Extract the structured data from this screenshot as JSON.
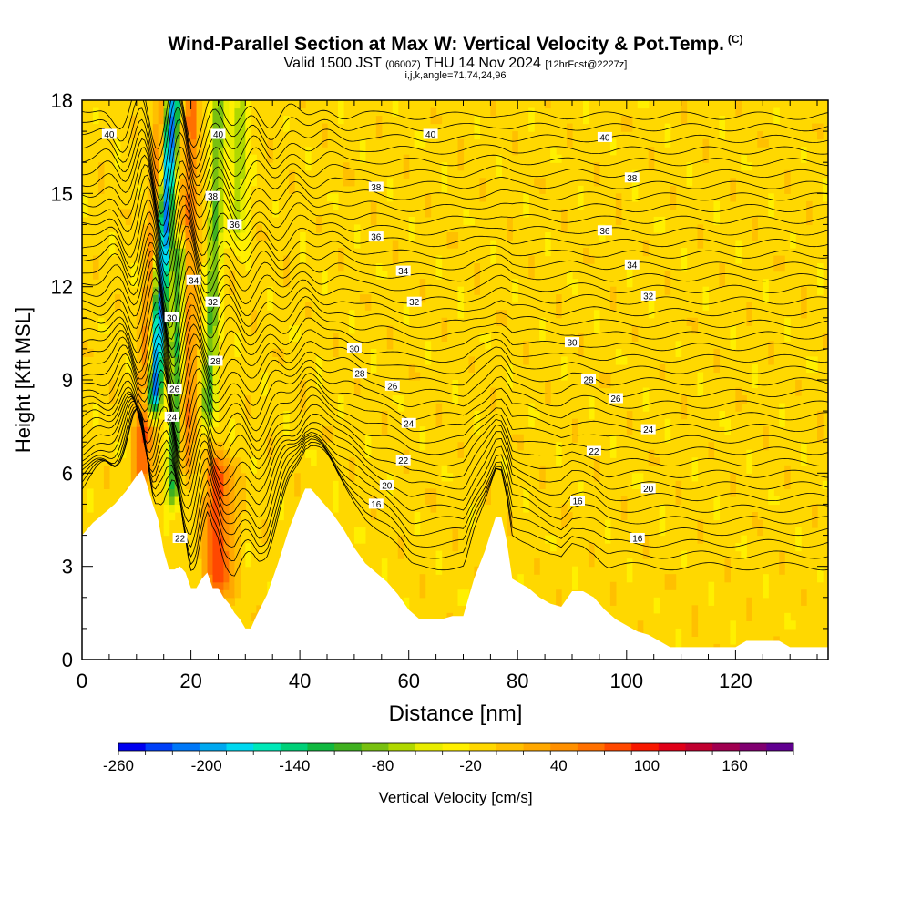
{
  "header": {
    "title": "Wind-Parallel Section at Max W: Vertical Velocity & Pot.Temp.",
    "copyright": "(C)",
    "valid_main": "Valid 1500 JST",
    "valid_utc": "(0600Z)",
    "valid_date": "THU 14 Nov 2024",
    "forecast": "[12hrFcst@2227z]",
    "indices": "i,j,k,angle=71,74,24,96"
  },
  "chart_data": {
    "type": "heatmap",
    "title": "Wind-Parallel Section at Max W: Vertical Velocity & Pot.Temp.",
    "xlabel": "Distance [nm]",
    "ylabel": "Height [Kft MSL]",
    "xlim": [
      0,
      137
    ],
    "ylim": [
      0,
      18
    ],
    "x_ticks": [
      0,
      20,
      40,
      60,
      80,
      100,
      120
    ],
    "x_tick_labels": [
      "0",
      "20",
      "40",
      "60",
      "80",
      "100",
      "120"
    ],
    "y_ticks": [
      0,
      3,
      6,
      9,
      12,
      15,
      18
    ],
    "y_tick_labels": [
      "0",
      "3",
      "6",
      "9",
      "12",
      "15",
      "18"
    ],
    "grid": false,
    "colorbar": {
      "label": "Vertical Velocity [cm/s]",
      "min": -260,
      "max": 180,
      "step": 20,
      "tick_labels": [
        "-260",
        "-200",
        "-140",
        "-80",
        "-20",
        "40",
        "100",
        "160"
      ],
      "tick_values": [
        -260,
        -200,
        -140,
        -80,
        -20,
        40,
        100,
        160
      ],
      "colors": [
        "#0000f0",
        "#0040f8",
        "#0078f8",
        "#00a8f0",
        "#00d8f0",
        "#00e8b8",
        "#00d078",
        "#10b840",
        "#40b020",
        "#78c010",
        "#b0d800",
        "#e8ec00",
        "#fff000",
        "#ffd800",
        "#ffc000",
        "#ffa800",
        "#ff9000",
        "#ff7000",
        "#ff4800",
        "#f81800",
        "#e00018",
        "#c00030",
        "#a00050",
        "#800070",
        "#600090"
      ]
    },
    "background_value": 10,
    "terrain": {
      "x": [
        0,
        2,
        4,
        6,
        8,
        10,
        11,
        12,
        13,
        14,
        15,
        16,
        17,
        18,
        19,
        20,
        21,
        22,
        23,
        24,
        25,
        26,
        27,
        28,
        29,
        30,
        31,
        32,
        34,
        36,
        38,
        40,
        41,
        42,
        43,
        44,
        46,
        48,
        50,
        52,
        54,
        56,
        58,
        60,
        62,
        64,
        66,
        68,
        70,
        71,
        72,
        74,
        76,
        77,
        78,
        79,
        80,
        82,
        84,
        86,
        88,
        90,
        92,
        94,
        96,
        98,
        100,
        102,
        104,
        106,
        108,
        110,
        112,
        114,
        116,
        118,
        120,
        122,
        124,
        126,
        128,
        130,
        132,
        134,
        137
      ],
      "height_kft": [
        4.0,
        4.4,
        4.7,
        5.0,
        5.4,
        5.9,
        6.1,
        5.6,
        5.0,
        4.5,
        3.5,
        2.9,
        2.9,
        3.0,
        2.8,
        2.3,
        2.3,
        2.6,
        2.8,
        2.3,
        2.3,
        2.0,
        1.8,
        1.5,
        1.3,
        1.0,
        1.0,
        1.4,
        2.1,
        3.1,
        4.2,
        5.1,
        5.5,
        5.5,
        5.3,
        5.1,
        4.7,
        4.2,
        3.6,
        3.1,
        2.8,
        2.5,
        2.1,
        1.6,
        1.3,
        1.3,
        1.3,
        1.4,
        1.4,
        2.0,
        2.6,
        3.5,
        4.6,
        4.6,
        3.8,
        2.6,
        2.5,
        2.3,
        2.0,
        1.8,
        1.7,
        2.2,
        2.2,
        2.0,
        1.6,
        1.3,
        1.1,
        0.9,
        0.8,
        0.6,
        0.4,
        0.4,
        0.4,
        0.4,
        0.4,
        0.4,
        0.4,
        0.6,
        0.6,
        0.6,
        0.6,
        0.4,
        0.4,
        0.4,
        0.4
      ]
    },
    "velocity_features": [
      {
        "name": "updraft-left",
        "x": 11.0,
        "z_bottom": 6.0,
        "z_top": 18,
        "lean_nm_per_kft": 0.35,
        "half_width_nm": 1.6,
        "value": 100
      },
      {
        "name": "downdraft-core",
        "x": 13.2,
        "z_bottom": 8.5,
        "z_top": 18,
        "lean_nm_per_kft": 0.35,
        "half_width_nm": 1.4,
        "value": -240
      },
      {
        "name": "downdraft-secondary",
        "x": 16.8,
        "z_bottom": 5.5,
        "z_top": 13.0,
        "lean_nm_per_kft": 0.15,
        "half_width_nm": 1.3,
        "value": -110
      },
      {
        "name": "updraft-mid",
        "x": 19.0,
        "z_bottom": 6.5,
        "z_top": 18,
        "lean_nm_per_kft": 0.1,
        "half_width_nm": 1.5,
        "value": 80
      },
      {
        "name": "updraft-lee",
        "x": 25.0,
        "z_bottom": 2.5,
        "z_top": 6.0,
        "lean_nm_per_kft": 0.0,
        "half_width_nm": 2.5,
        "value": 110
      },
      {
        "name": "downdraft-wave-2",
        "x": 23.2,
        "z_bottom": 8.0,
        "z_top": 18,
        "lean_nm_per_kft": 0.2,
        "half_width_nm": 1.3,
        "value": -80
      },
      {
        "name": "downdraft-wave-3",
        "x": 28.5,
        "z_bottom": 14.0,
        "z_top": 18,
        "lean_nm_per_kft": 0.2,
        "half_width_nm": 1.4,
        "value": -60
      }
    ],
    "theta_contours": {
      "levels": [
        16,
        18,
        20,
        22,
        24,
        26,
        28,
        30,
        32,
        34,
        36,
        38,
        40
      ],
      "labels": [
        {
          "text": "16",
          "x": 54,
          "y": 5.0
        },
        {
          "text": "16",
          "x": 91,
          "y": 5.1
        },
        {
          "text": "16",
          "x": 102,
          "y": 3.9
        },
        {
          "text": "20",
          "x": 56,
          "y": 5.6
        },
        {
          "text": "20",
          "x": 104,
          "y": 5.5
        },
        {
          "text": "22",
          "x": 59,
          "y": 6.4
        },
        {
          "text": "22",
          "x": 94,
          "y": 6.7
        },
        {
          "text": "22",
          "x": 18,
          "y": 3.9
        },
        {
          "text": "24",
          "x": 60,
          "y": 7.6
        },
        {
          "text": "24",
          "x": 104,
          "y": 7.4
        },
        {
          "text": "24",
          "x": 16.5,
          "y": 7.8
        },
        {
          "text": "26",
          "x": 57,
          "y": 8.8
        },
        {
          "text": "26",
          "x": 98,
          "y": 8.4
        },
        {
          "text": "26",
          "x": 17,
          "y": 8.7
        },
        {
          "text": "28",
          "x": 51,
          "y": 9.2
        },
        {
          "text": "28",
          "x": 93,
          "y": 9.0
        },
        {
          "text": "28",
          "x": 24.5,
          "y": 9.6
        },
        {
          "text": "30",
          "x": 50,
          "y": 10.0
        },
        {
          "text": "30",
          "x": 90,
          "y": 10.2
        },
        {
          "text": "30",
          "x": 16.5,
          "y": 11.0
        },
        {
          "text": "32",
          "x": 61,
          "y": 11.5
        },
        {
          "text": "32",
          "x": 104,
          "y": 11.7
        },
        {
          "text": "32",
          "x": 24,
          "y": 11.5
        },
        {
          "text": "34",
          "x": 59,
          "y": 12.5
        },
        {
          "text": "34",
          "x": 101,
          "y": 12.7
        },
        {
          "text": "34",
          "x": 20.5,
          "y": 12.2
        },
        {
          "text": "36",
          "x": 54,
          "y": 13.6
        },
        {
          "text": "36",
          "x": 96,
          "y": 13.8
        },
        {
          "text": "36",
          "x": 28,
          "y": 14.0
        },
        {
          "text": "38",
          "x": 54,
          "y": 15.2
        },
        {
          "text": "38",
          "x": 101,
          "y": 15.5
        },
        {
          "text": "38",
          "x": 24,
          "y": 14.9
        },
        {
          "text": "40",
          "x": 5,
          "y": 16.9
        },
        {
          "text": "40",
          "x": 64,
          "y": 16.9
        },
        {
          "text": "40",
          "x": 96,
          "y": 16.8
        },
        {
          "text": "40",
          "x": 25,
          "y": 16.9
        }
      ]
    }
  }
}
